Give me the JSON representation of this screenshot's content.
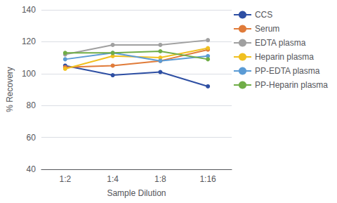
{
  "chart_data": {
    "type": "line",
    "categories": [
      "1:2",
      "1:4",
      "1:8",
      "1:16"
    ],
    "series": [
      {
        "name": "CCS",
        "color": "#2e4fa3",
        "values": [
          105,
          99,
          101,
          92
        ]
      },
      {
        "name": "Serum",
        "color": "#e07b39",
        "values": [
          104,
          105,
          108,
          115
        ]
      },
      {
        "name": "EDTA plasma",
        "color": "#a0a0a0",
        "values": [
          112,
          118,
          118,
          121
        ]
      },
      {
        "name": "Heparin plasma",
        "color": "#f0c020",
        "values": [
          103,
          111,
          110,
          116
        ]
      },
      {
        "name": "PP-EDTA plasma",
        "color": "#5b9bd5",
        "values": [
          109,
          113,
          108,
          111
        ]
      },
      {
        "name": "PP-Heparin plasma",
        "color": "#70ad47",
        "values": [
          113,
          113,
          114,
          109
        ]
      }
    ],
    "xlabel": "Sample Dilution",
    "ylabel": "% Recovery",
    "ylim": [
      40,
      140
    ],
    "yticks": [
      40,
      60,
      80,
      100,
      120,
      140
    ],
    "grid": true,
    "legend": "right",
    "marker": "circle"
  }
}
